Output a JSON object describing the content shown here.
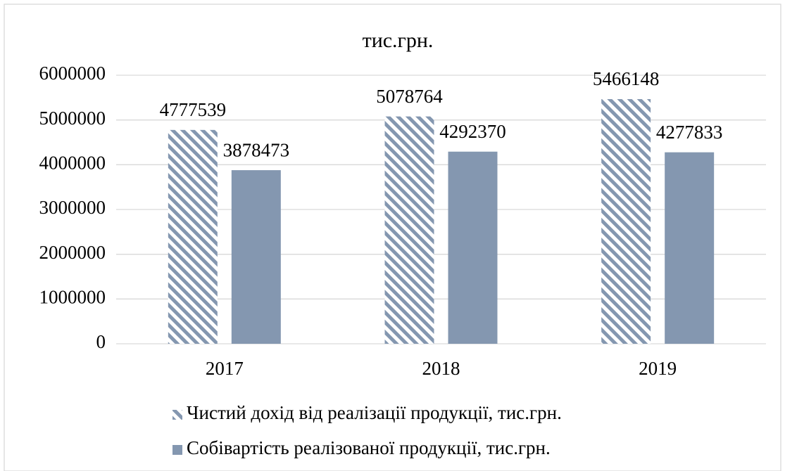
{
  "chart_data": {
    "type": "bar",
    "title": "тис.грн.",
    "categories": [
      "2017",
      "2018",
      "2019"
    ],
    "series": [
      {
        "name": "Чистий дохід від реалізації продукції, тис.грн.",
        "color": "#8497b0",
        "hatch": true,
        "values": [
          4777539,
          5078764,
          5466148
        ]
      },
      {
        "name": "Собівартість реалізованої продукції, тис.грн.",
        "color": "#8497b0",
        "values": [
          3878473,
          4292370,
          4277833
        ]
      }
    ],
    "ylim": [
      0,
      6000000
    ],
    "yticks": [
      0,
      1000000,
      2000000,
      3000000,
      4000000,
      5000000,
      6000000
    ],
    "grid": true,
    "legend": "bottom"
  }
}
